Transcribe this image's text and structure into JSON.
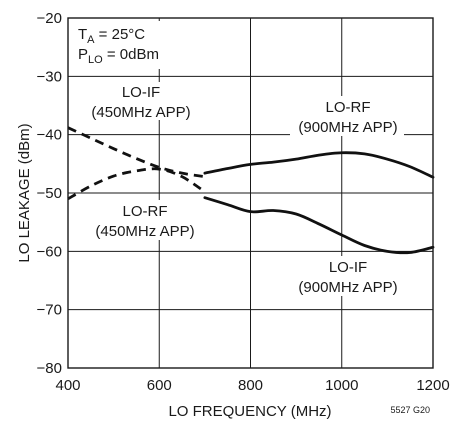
{
  "chart_data": {
    "type": "line",
    "title": "",
    "xlabel": "LO FREQUENCY (MHz)",
    "ylabel": "LO LEAKAGE (dBm)",
    "xlim": [
      400,
      1200
    ],
    "ylim": [
      -80,
      -20
    ],
    "x_ticks": [
      400,
      600,
      800,
      1000,
      1200
    ],
    "y_ticks": [
      -20,
      -30,
      -40,
      -50,
      -60,
      -70,
      -80
    ],
    "grid": true,
    "conditions": {
      "ta_main": "T",
      "ta_sub": "A",
      "ta_rest": " = 25°C",
      "plo_main": "P",
      "plo_sub": "LO",
      "plo_rest": " = 0dBm"
    },
    "figure_id": "5527 G20",
    "series": [
      {
        "name": "LO-IF (450MHz APP)",
        "label_lines": [
          "LO-IF",
          "(450MHz APP)"
        ],
        "style": "dashed",
        "x": [
          400,
          450,
          500,
          550,
          600,
          650,
          700
        ],
        "y": [
          -38.8,
          -40.6,
          -42.4,
          -44.1,
          -45.6,
          -46.6,
          -47.2
        ]
      },
      {
        "name": "LO-RF (450MHz APP)",
        "label_lines": [
          "LO-RF",
          "(450MHz APP)"
        ],
        "style": "dashed",
        "x": [
          400,
          450,
          500,
          550,
          600,
          650,
          700
        ],
        "y": [
          -51.0,
          -48.8,
          -47.1,
          -46.2,
          -45.9,
          -47.2,
          -49.8
        ]
      },
      {
        "name": "LO-RF (900MHz APP)",
        "label_lines": [
          "LO-RF",
          "(900MHz APP)"
        ],
        "style": "solid",
        "x": [
          700,
          750,
          800,
          850,
          900,
          950,
          1000,
          1050,
          1100,
          1150,
          1200
        ],
        "y": [
          -46.6,
          -45.8,
          -45.1,
          -44.7,
          -44.2,
          -43.5,
          -43.1,
          -43.3,
          -44.2,
          -45.5,
          -47.3
        ]
      },
      {
        "name": "LO-IF (900MHz APP)",
        "label_lines": [
          "LO-IF",
          "(900MHz APP)"
        ],
        "style": "solid",
        "x": [
          700,
          750,
          800,
          850,
          900,
          950,
          1000,
          1050,
          1100,
          1150,
          1200
        ],
        "y": [
          -50.8,
          -52.0,
          -53.2,
          -53.0,
          -53.6,
          -55.3,
          -57.2,
          -59.0,
          -60.0,
          -60.2,
          -59.3
        ]
      }
    ]
  }
}
